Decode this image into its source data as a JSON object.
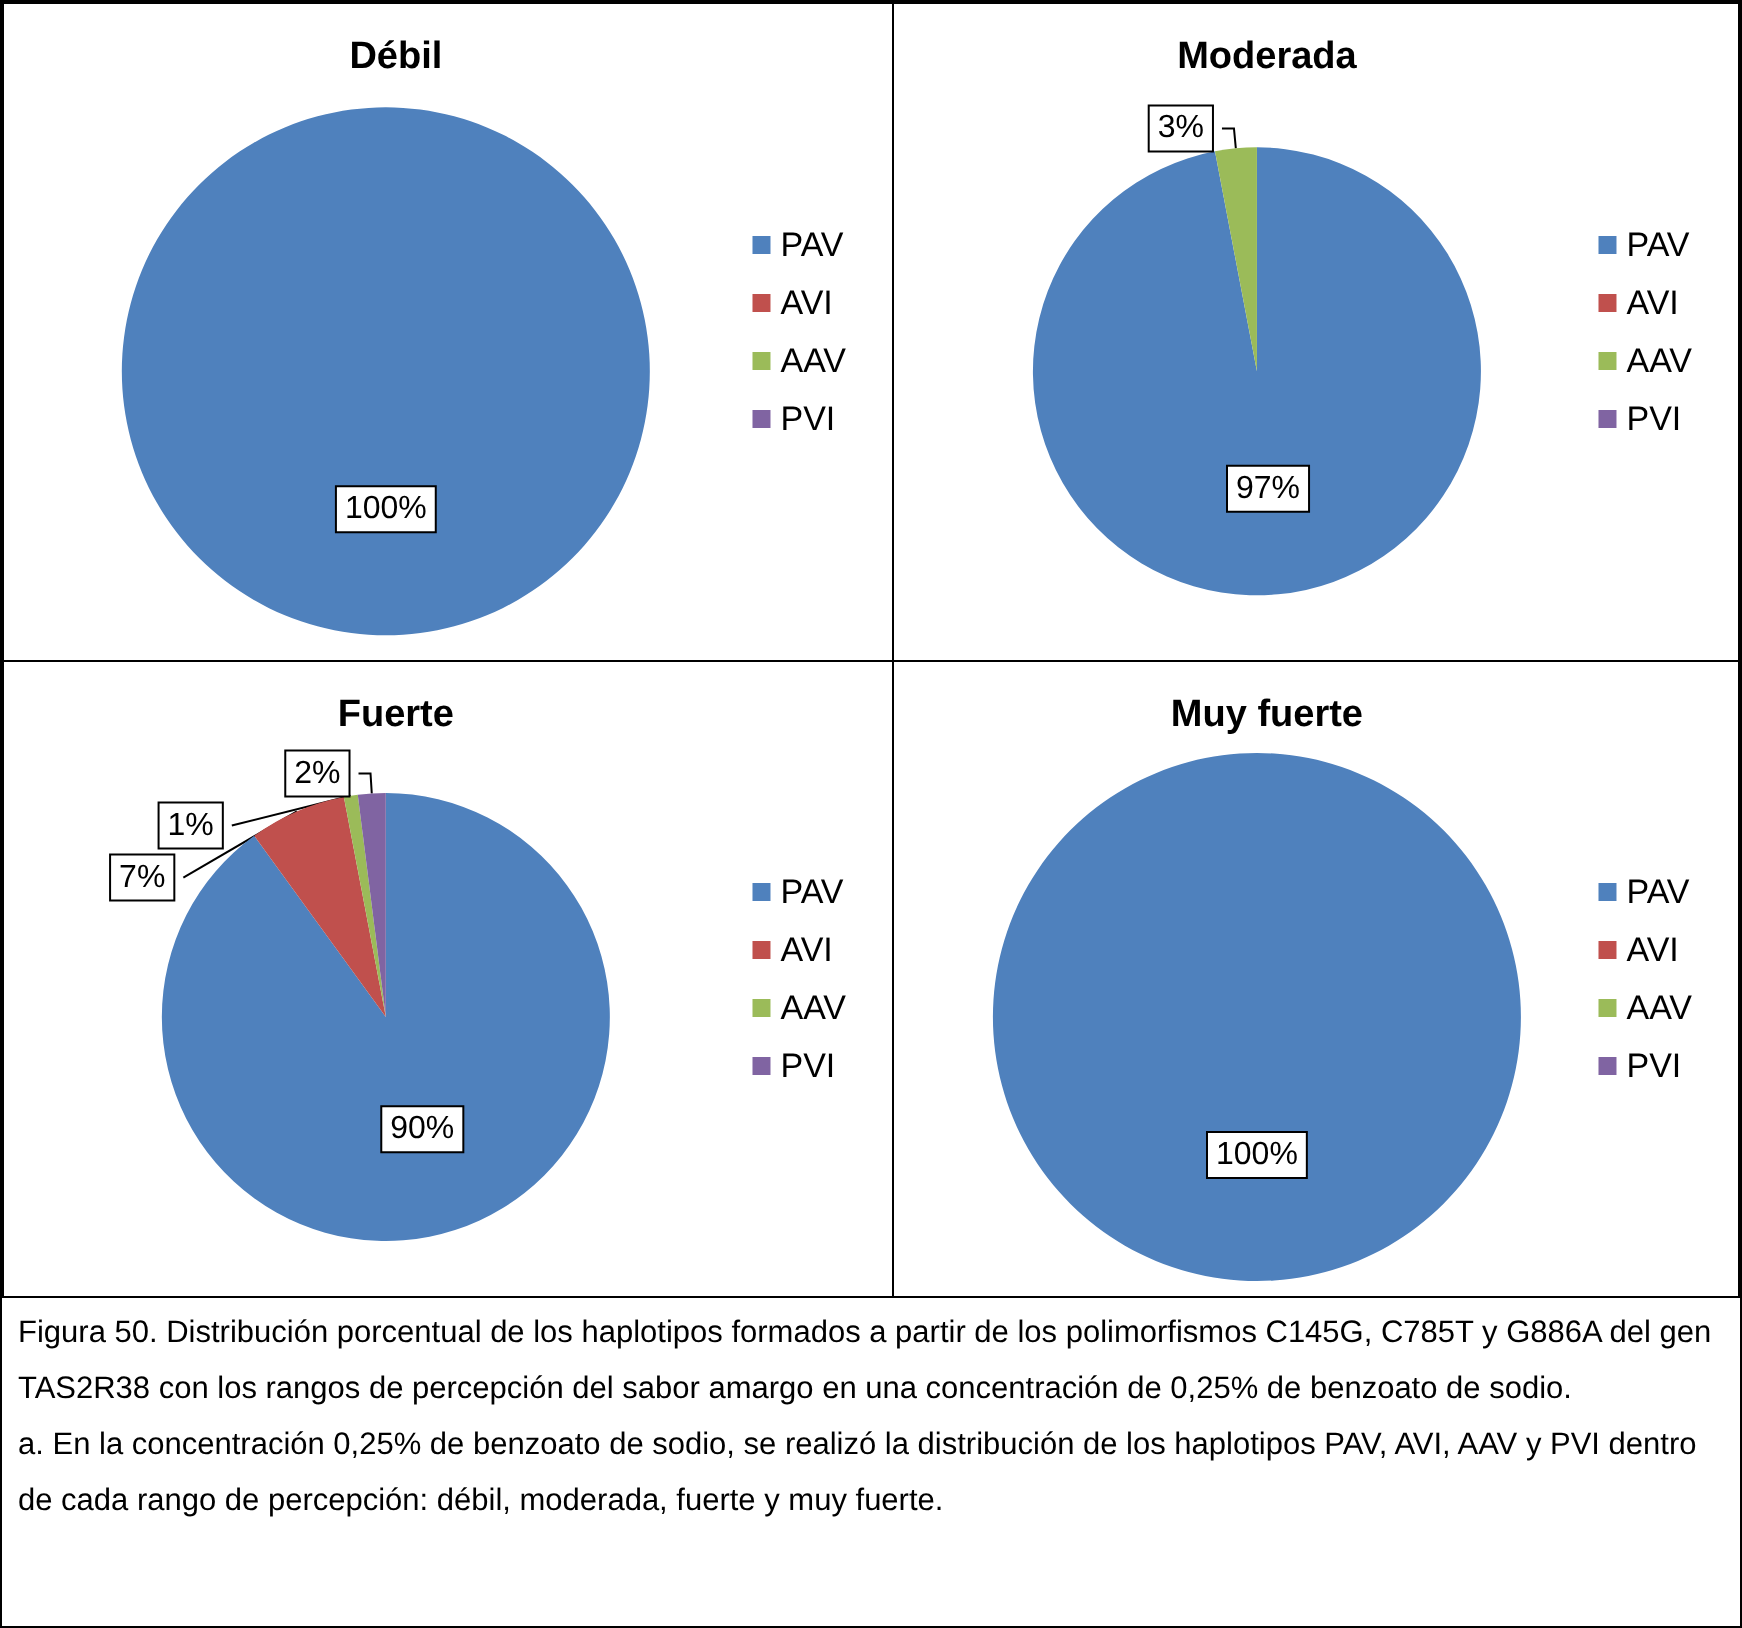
{
  "chart_data": [
    {
      "type": "pie",
      "title": "Débil",
      "categories": [
        "PAV",
        "AVI",
        "AAV",
        "PVI"
      ],
      "values": [
        100,
        0,
        0,
        0
      ],
      "value_labels": [
        "100%",
        null,
        null,
        null
      ],
      "colors": [
        "#4f81bd",
        "#c0504d",
        "#9bbb59",
        "#8064a2"
      ],
      "legend": "right"
    },
    {
      "type": "pie",
      "title": "Moderada",
      "categories": [
        "PAV",
        "AVI",
        "AAV",
        "PVI"
      ],
      "values": [
        97,
        0,
        3,
        0
      ],
      "value_labels": [
        "97%",
        null,
        "3%",
        null
      ],
      "colors": [
        "#4f81bd",
        "#c0504d",
        "#9bbb59",
        "#8064a2"
      ],
      "legend": "right"
    },
    {
      "type": "pie",
      "title": "Fuerte",
      "categories": [
        "PAV",
        "AVI",
        "AAV",
        "PVI"
      ],
      "values": [
        90,
        7,
        1,
        2
      ],
      "value_labels": [
        "90%",
        "7%",
        "1%",
        "2%"
      ],
      "colors": [
        "#4f81bd",
        "#c0504d",
        "#9bbb59",
        "#8064a2"
      ],
      "legend": "right"
    },
    {
      "type": "pie",
      "title": "Muy fuerte",
      "categories": [
        "PAV",
        "AVI",
        "AAV",
        "PVI"
      ],
      "values": [
        100,
        0,
        0,
        0
      ],
      "value_labels": [
        "100%",
        null,
        null,
        null
      ],
      "colors": [
        "#4f81bd",
        "#c0504d",
        "#9bbb59",
        "#8064a2"
      ],
      "legend": "right",
      "annotations": [
        "Figura 50. Distribución porcentual de los haplotipos formados a partir de los polimorfismos C145G, C785T y G886A del gen TAS2R38 con los rangos de percepción del sabor amargo en una concentración de 0,25% de benzoato de sodio.",
        "a. En la concentración 0,25% de benzoato de sodio, se  realizó la distribución de los haplotipos PAV, AVI, AAV y PVI dentro de cada rango de percepción: débil, moderada, fuerte y muy fuerte."
      ]
    }
  ]
}
